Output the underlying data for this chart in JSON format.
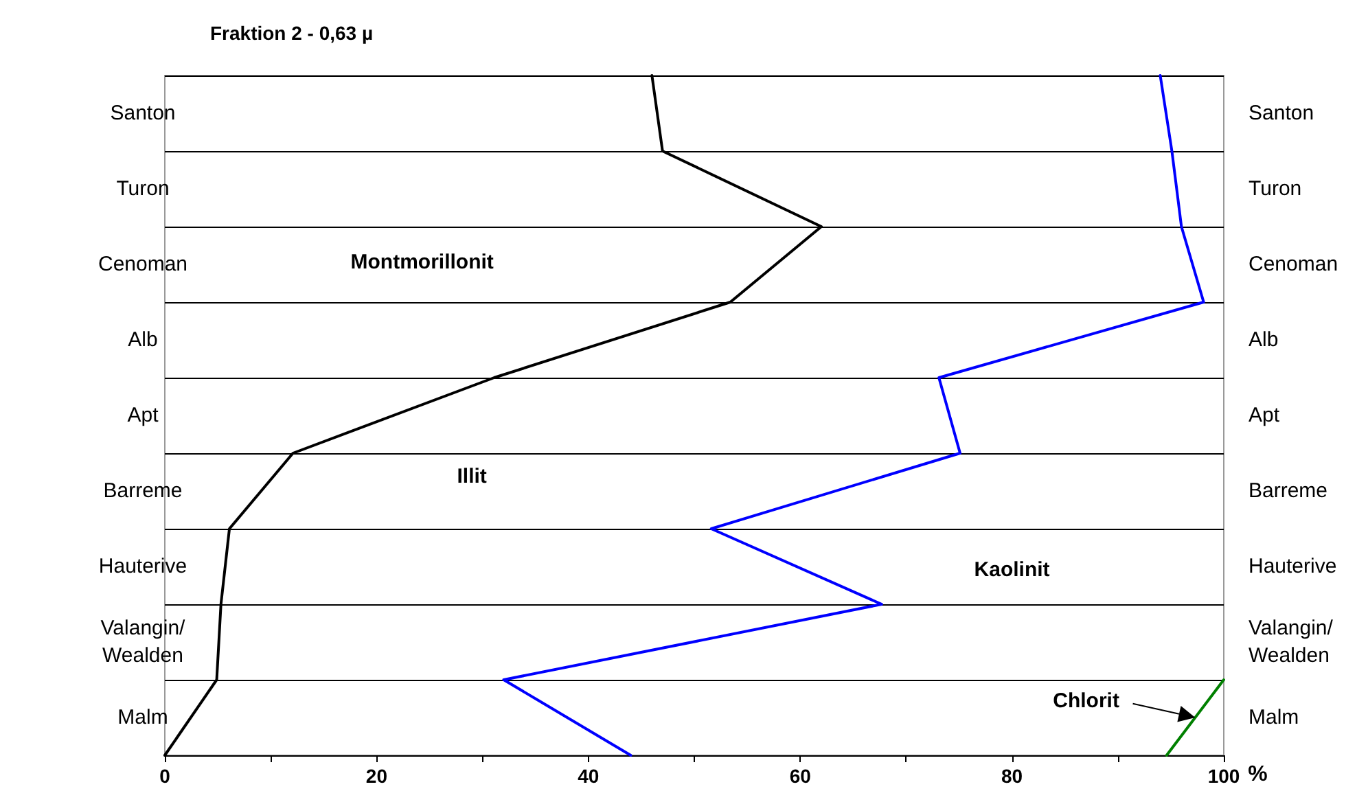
{
  "chart_data": {
    "type": "line",
    "orientation": "horizontal",
    "title": "Fraktion 2 - 0,63 µ",
    "xlabel": "%",
    "grid": "y",
    "xlim": [
      0,
      100
    ],
    "xticks": [
      0,
      {
        "value": 10,
        "label": null
      },
      20,
      {
        "value": 30,
        "label": null
      },
      40,
      {
        "value": 50,
        "label": null
      },
      60,
      {
        "value": 70,
        "label": null
      },
      80,
      {
        "value": 90,
        "label": null
      },
      100
    ],
    "categories": [
      null,
      "Santon",
      null,
      "Turon",
      null,
      "Cenoman",
      null,
      "Alb",
      null,
      "Apt",
      null,
      "Barreme",
      null,
      "Hauterive",
      null,
      "Valangin/\nWealden",
      null,
      "Malm",
      null
    ],
    "y2_categories": [
      null,
      "Santon",
      null,
      "Turon",
      null,
      "Cenoman",
      null,
      "Alb",
      null,
      "Apt",
      null,
      "Barreme",
      null,
      "Hauterive",
      null,
      "Valangin/\nWealden",
      null,
      "Malm",
      null
    ],
    "series": [
      {
        "color": "#000000",
        "values": [
          46,
          null,
          47,
          null,
          62,
          null,
          53.4,
          null,
          31.1,
          null,
          12.1,
          null,
          6.1,
          null,
          5.3,
          null,
          4.9,
          null,
          0
        ]
      },
      {
        "color": "#0000ff",
        "values": [
          94,
          null,
          95.1,
          null,
          96,
          null,
          98.1,
          null,
          73.1,
          null,
          75.1,
          null,
          51.6,
          null,
          67.7,
          null,
          32,
          null,
          44
        ]
      },
      {
        "color": "#008000",
        "values": [
          null,
          null,
          null,
          null,
          null,
          null,
          null,
          null,
          null,
          null,
          null,
          null,
          null,
          null,
          null,
          null,
          100,
          null,
          94.6
        ]
      }
    ],
    "annotations": [
      "Montmorillonit",
      "Illit",
      "Kaolinit",
      "Chlorit"
    ]
  }
}
